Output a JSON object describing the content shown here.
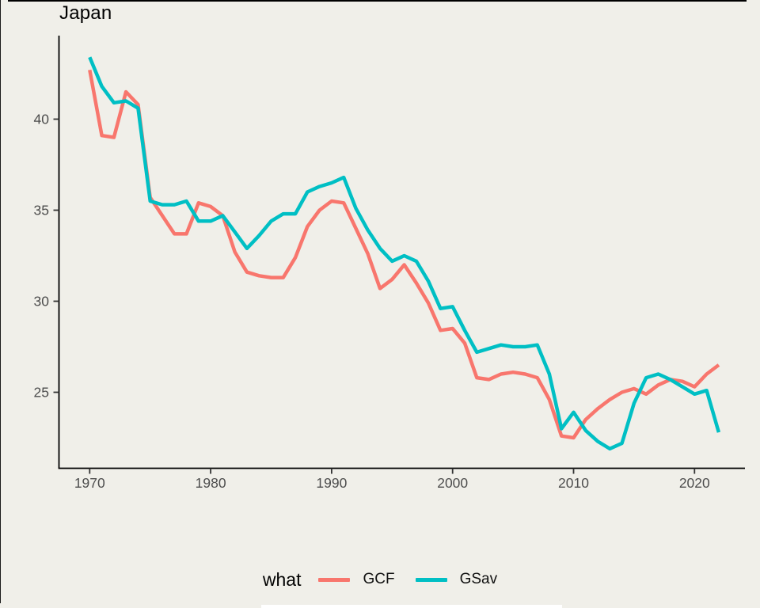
{
  "title": "Japan",
  "colors": {
    "gcf": "#F8766D",
    "gsav": "#00BFC4",
    "background": "#F0EFE9",
    "axis": "#000000",
    "tick_label": "#4d4d4d"
  },
  "legend": {
    "title": "what",
    "items": [
      {
        "label": "GCF",
        "color_key": "gcf"
      },
      {
        "label": "GSav",
        "color_key": "gsav"
      }
    ]
  },
  "chart_data": {
    "type": "line",
    "title": "Japan",
    "xlabel": "",
    "ylabel": "",
    "grid": false,
    "legend_title": "what",
    "legend_position": "bottom",
    "x_ticks": [
      1970,
      1980,
      1990,
      2000,
      2010,
      2020
    ],
    "y_ticks": [
      25,
      30,
      35,
      40
    ],
    "xlim": [
      1967.5,
      2024.5
    ],
    "ylim": [
      21.5,
      43.6
    ],
    "x": [
      1970,
      1971,
      1972,
      1973,
      1974,
      1975,
      1976,
      1977,
      1978,
      1979,
      1980,
      1981,
      1982,
      1983,
      1984,
      1985,
      1986,
      1987,
      1988,
      1989,
      1990,
      1991,
      1992,
      1993,
      1994,
      1995,
      1996,
      1997,
      1998,
      1999,
      2000,
      2001,
      2002,
      2003,
      2004,
      2005,
      2006,
      2007,
      2008,
      2009,
      2010,
      2011,
      2012,
      2013,
      2014,
      2015,
      2016,
      2017,
      2018,
      2019,
      2020,
      2021,
      2022
    ],
    "series": [
      {
        "name": "GCF",
        "color_key": "gcf",
        "values": [
          42.7,
          39.1,
          39.0,
          41.5,
          40.8,
          35.7,
          34.7,
          33.7,
          33.7,
          35.4,
          35.2,
          34.7,
          32.7,
          31.6,
          31.4,
          31.3,
          31.3,
          32.4,
          34.1,
          35.0,
          35.5,
          35.4,
          34.0,
          32.6,
          30.7,
          31.2,
          32.0,
          31.0,
          29.9,
          28.4,
          28.5,
          27.7,
          25.8,
          25.7,
          26.0,
          26.1,
          26.0,
          25.8,
          24.6,
          22.6,
          22.5,
          23.5,
          24.1,
          24.6,
          25.0,
          25.2,
          24.9,
          25.4,
          25.7,
          25.6,
          25.3,
          26.0,
          26.5
        ]
      },
      {
        "name": "GSav",
        "color_key": "gsav",
        "values": [
          43.4,
          41.8,
          40.9,
          41.0,
          40.6,
          35.5,
          35.3,
          35.3,
          35.5,
          34.4,
          34.4,
          34.7,
          33.8,
          32.9,
          33.6,
          34.4,
          34.8,
          34.8,
          36.0,
          36.3,
          36.5,
          36.8,
          35.1,
          33.9,
          32.9,
          32.2,
          32.5,
          32.2,
          31.1,
          29.6,
          29.7,
          28.4,
          27.2,
          27.4,
          27.6,
          27.5,
          27.5,
          27.6,
          26.0,
          23.0,
          23.9,
          22.9,
          22.3,
          21.9,
          22.2,
          24.4,
          25.8,
          26.0,
          25.7,
          25.3,
          24.9,
          25.1,
          22.8
        ]
      }
    ]
  }
}
